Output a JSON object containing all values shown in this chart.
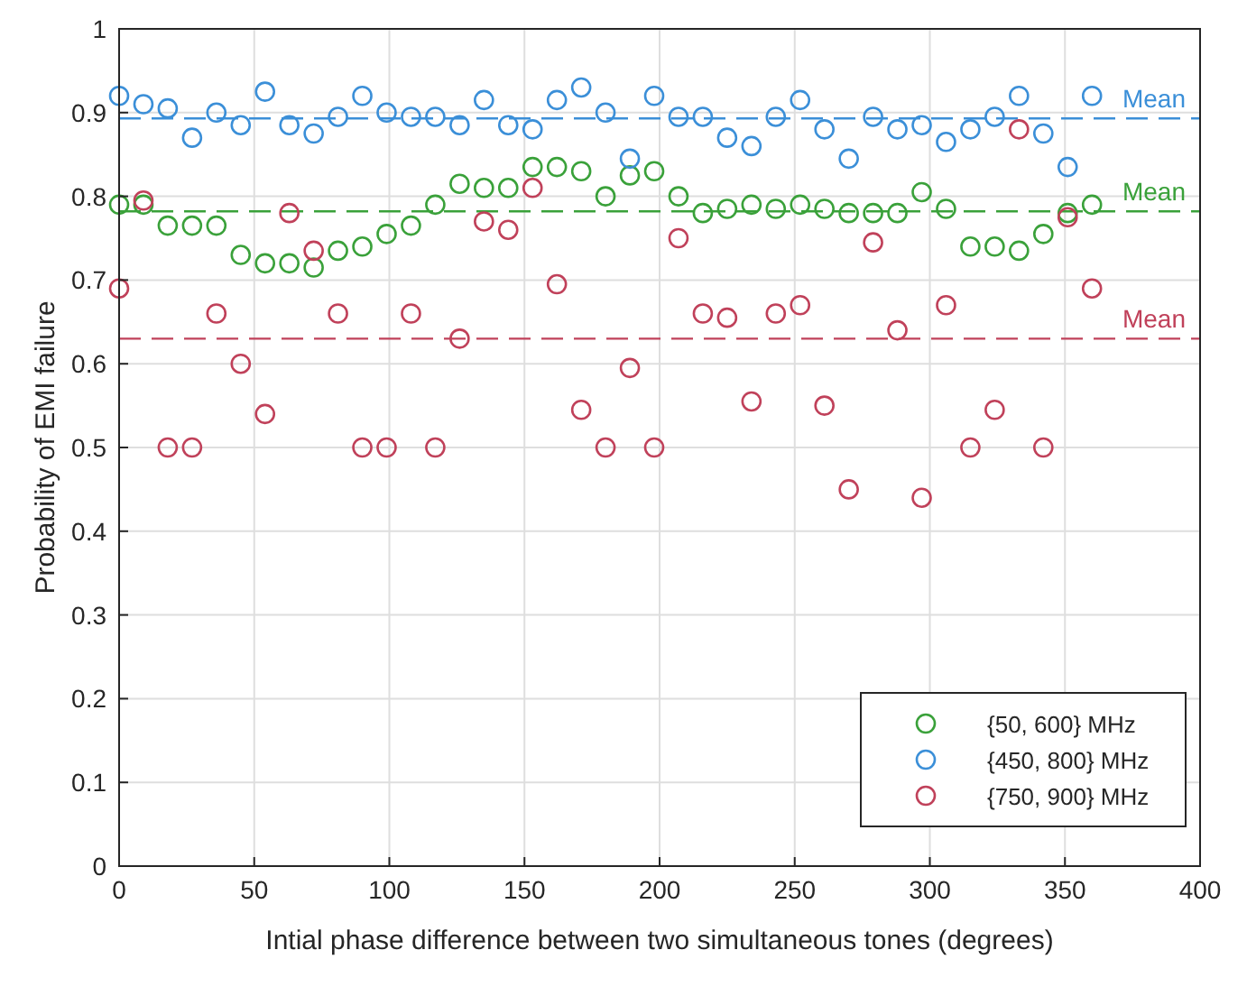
{
  "chart_data": {
    "type": "scatter",
    "xlabel": "Intial phase difference between two simultaneous tones (degrees)",
    "ylabel": "Probability of EMI failure",
    "x": [
      0,
      9,
      18,
      27,
      36,
      45,
      54,
      63,
      72,
      81,
      90,
      99,
      108,
      117,
      126,
      135,
      144,
      153,
      162,
      171,
      180,
      189,
      198,
      207,
      216,
      225,
      234,
      243,
      252,
      261,
      270,
      279,
      288,
      297,
      306,
      315,
      324,
      333,
      342,
      351,
      360
    ],
    "series": [
      {
        "name": "{50, 600} MHz",
        "color": "#3aa13a",
        "values": [
          0.79,
          0.79,
          0.765,
          0.765,
          0.765,
          0.73,
          0.72,
          0.72,
          0.715,
          0.735,
          0.74,
          0.755,
          0.765,
          0.79,
          0.815,
          0.81,
          0.81,
          0.835,
          0.835,
          0.83,
          0.8,
          0.825,
          0.83,
          0.8,
          0.78,
          0.785,
          0.79,
          0.785,
          0.79,
          0.785,
          0.78,
          0.78,
          0.78,
          0.805,
          0.785,
          0.74,
          0.74,
          0.735,
          0.755,
          0.78,
          0.79
        ]
      },
      {
        "name": "{450, 800} MHz",
        "color": "#3b8fd8",
        "values": [
          0.92,
          0.91,
          0.905,
          0.87,
          0.9,
          0.885,
          0.925,
          0.885,
          0.875,
          0.895,
          0.92,
          0.9,
          0.895,
          0.895,
          0.885,
          0.915,
          0.885,
          0.88,
          0.915,
          0.93,
          0.9,
          0.845,
          0.92,
          0.895,
          0.895,
          0.87,
          0.86,
          0.895,
          0.915,
          0.88,
          0.845,
          0.895,
          0.88,
          0.885,
          0.865,
          0.88,
          0.895,
          0.92,
          0.875,
          0.835,
          0.92
        ]
      },
      {
        "name": "{750, 900} MHz",
        "color": "#c0415a",
        "values": [
          0.69,
          0.795,
          0.5,
          0.5,
          0.66,
          0.6,
          0.54,
          0.78,
          0.735,
          0.66,
          0.5,
          0.5,
          0.66,
          0.5,
          0.63,
          0.77,
          0.76,
          0.81,
          0.695,
          0.545,
          0.5,
          0.595,
          0.5,
          0.75,
          0.66,
          0.655,
          0.555,
          0.66,
          0.67,
          0.55,
          0.45,
          0.745,
          0.64,
          0.44,
          0.67,
          0.5,
          0.545,
          0.88,
          0.5,
          0.775,
          0.69
        ]
      }
    ],
    "ref_lines": [
      {
        "axis": "y",
        "value": 0.893,
        "label": "Mean",
        "color": "#3b8fd8",
        "line_style": "dashed"
      },
      {
        "axis": "y",
        "value": 0.782,
        "label": "Mean",
        "color": "#3aa13a",
        "line_style": "dashed"
      },
      {
        "axis": "y",
        "value": 0.63,
        "label": "Mean",
        "color": "#c0415a",
        "line_style": "dashed"
      }
    ],
    "xlim": [
      0,
      400
    ],
    "ylim": [
      0,
      1
    ],
    "xticks": [
      0,
      50,
      100,
      150,
      200,
      250,
      300,
      350,
      400
    ],
    "yticks": [
      0,
      0.1,
      0.2,
      0.3,
      0.4,
      0.5,
      0.6,
      0.7,
      0.8,
      0.9,
      1
    ],
    "grid": true,
    "legend": "bottom right",
    "marker": "circle"
  }
}
